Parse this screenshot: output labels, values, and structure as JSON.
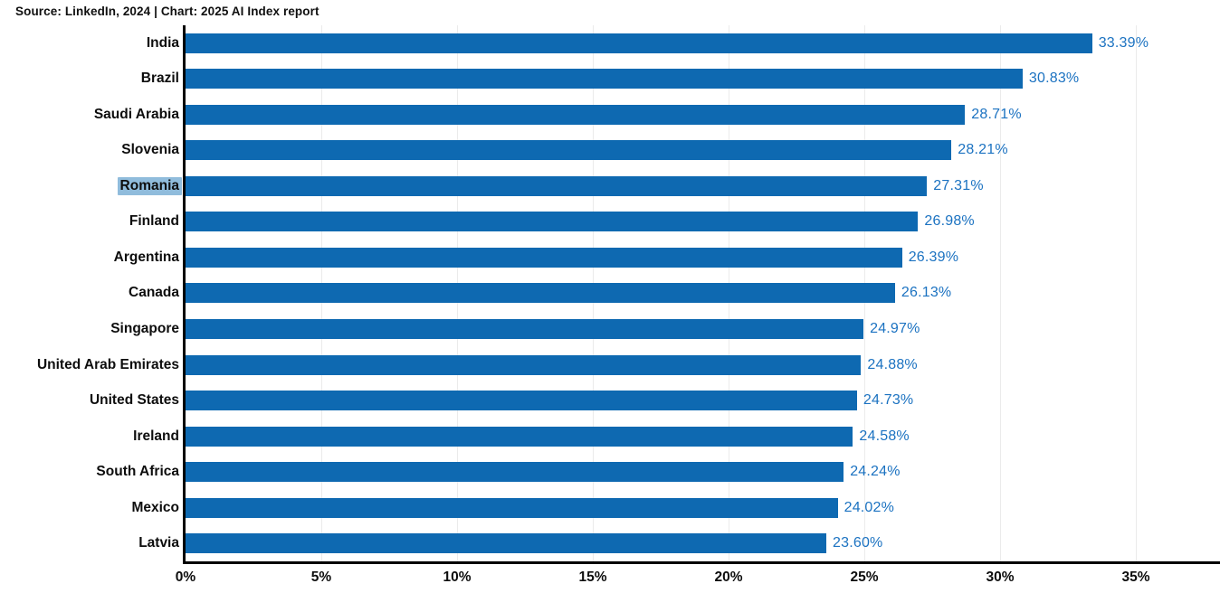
{
  "header": {
    "attribution": "Source: LinkedIn, 2024 | Chart: 2025 AI Index report"
  },
  "chart_data": {
    "type": "bar",
    "orientation": "horizontal",
    "categories": [
      "India",
      "Brazil",
      "Saudi Arabia",
      "Slovenia",
      "Romania",
      "Finland",
      "Argentina",
      "Canada",
      "Singapore",
      "United Arab Emirates",
      "United States",
      "Ireland",
      "South Africa",
      "Mexico",
      "Latvia"
    ],
    "values": [
      33.39,
      30.83,
      28.71,
      28.21,
      27.31,
      26.98,
      26.39,
      26.13,
      24.97,
      24.88,
      24.73,
      24.58,
      24.24,
      24.02,
      23.6
    ],
    "value_labels": [
      "33.39%",
      "30.83%",
      "28.71%",
      "28.21%",
      "27.31%",
      "26.98%",
      "26.39%",
      "26.13%",
      "24.97%",
      "24.88%",
      "24.73%",
      "24.58%",
      "24.24%",
      "24.02%",
      "23.60%"
    ],
    "highlighted_category": "Romania",
    "x_ticks": [
      "0%",
      "5%",
      "10%",
      "15%",
      "20%",
      "25%",
      "30%",
      "35%"
    ],
    "x_tick_values": [
      0,
      5,
      10,
      15,
      20,
      25,
      30,
      35
    ],
    "xlim": [
      0,
      38.1
    ],
    "grid": "vertical",
    "legend": "none",
    "title": "",
    "xlabel": "",
    "ylabel": "",
    "colors": {
      "bar": "#0e69b1",
      "value_label": "#1b72c1",
      "highlight_bg": "#90bcdc",
      "gridline": "#ebebeb",
      "axis": "#000000"
    }
  }
}
